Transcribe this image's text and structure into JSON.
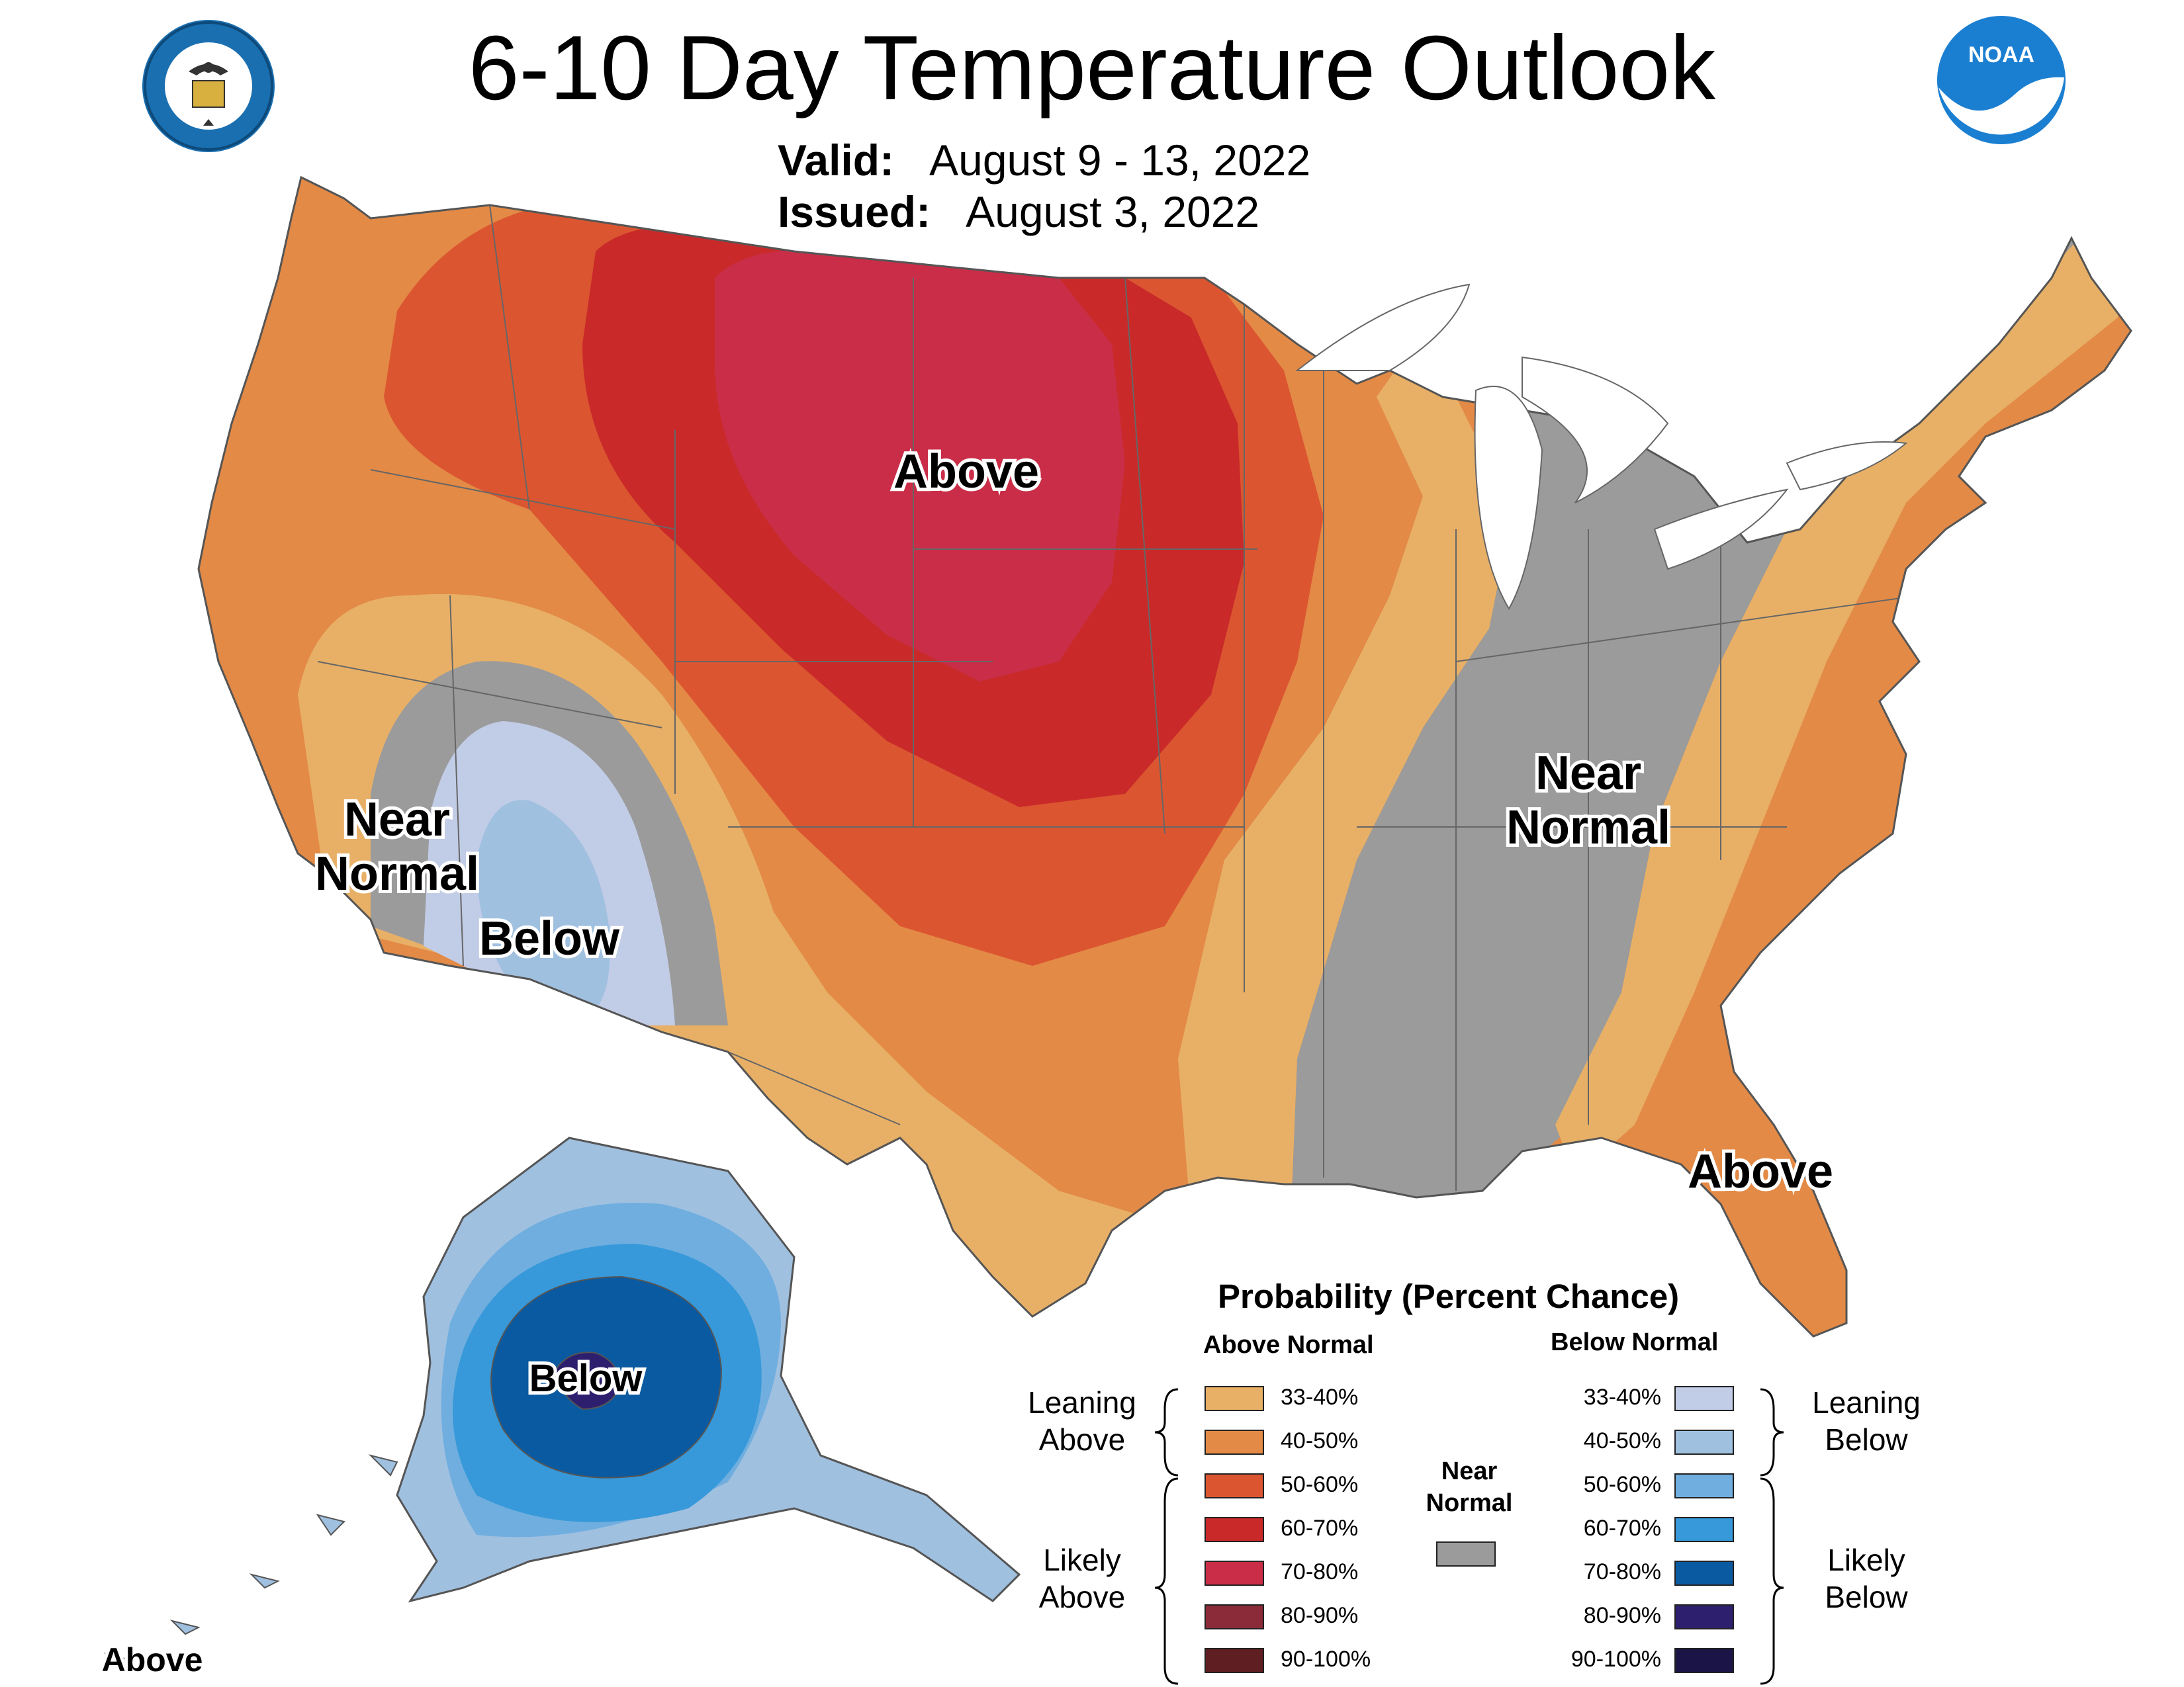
{
  "title": "6-10 Day Temperature Outlook",
  "valid_label": "Valid:",
  "valid_value": "August 9 - 13, 2022",
  "issued_label": "Issued:",
  "issued_value": "August 3, 2022",
  "logos": {
    "doc_seal_text": "DEPARTMENT OF COMMERCE · UNITED STATES OF AMERICA",
    "noaa_text": "NOAA"
  },
  "map_labels": {
    "above_north": "Above",
    "near_normal_west_1": "Near",
    "near_normal_west_2": "Normal",
    "below_southwest": "Below",
    "near_normal_east_1": "Near",
    "near_normal_east_2": "Normal",
    "above_southeast": "Above",
    "below_alaska": "Below",
    "above_aleutians": "Above"
  },
  "legend": {
    "title": "Probability (Percent Chance)",
    "above_header": "Above Normal",
    "below_header": "Below Normal",
    "near_header_1": "Near",
    "near_header_2": "Normal",
    "leaning_above_1": "Leaning",
    "leaning_above_2": "Above",
    "likely_above_1": "Likely",
    "likely_above_2": "Above",
    "leaning_below_1": "Leaning",
    "leaning_below_2": "Below",
    "likely_below_1": "Likely",
    "likely_below_2": "Below",
    "above_classes": [
      {
        "label": "33-40%",
        "color": "#E8B067"
      },
      {
        "label": "40-50%",
        "color": "#E38A46"
      },
      {
        "label": "50-60%",
        "color": "#DB5630"
      },
      {
        "label": "60-70%",
        "color": "#C92A29"
      },
      {
        "label": "70-80%",
        "color": "#CA2D47"
      },
      {
        "label": "80-90%",
        "color": "#8B2A38"
      },
      {
        "label": "90-100%",
        "color": "#5E1E22"
      }
    ],
    "below_classes": [
      {
        "label": "33-40%",
        "color": "#C1CCE6"
      },
      {
        "label": "40-50%",
        "color": "#A0C0E0"
      },
      {
        "label": "50-60%",
        "color": "#6FAEDF"
      },
      {
        "label": "60-70%",
        "color": "#3799D9"
      },
      {
        "label": "70-80%",
        "color": "#0A5AA1"
      },
      {
        "label": "80-90%",
        "color": "#2E1F6E"
      },
      {
        "label": "90-100%",
        "color": "#1B1547"
      }
    ],
    "near_color": "#9B9B9B"
  }
}
